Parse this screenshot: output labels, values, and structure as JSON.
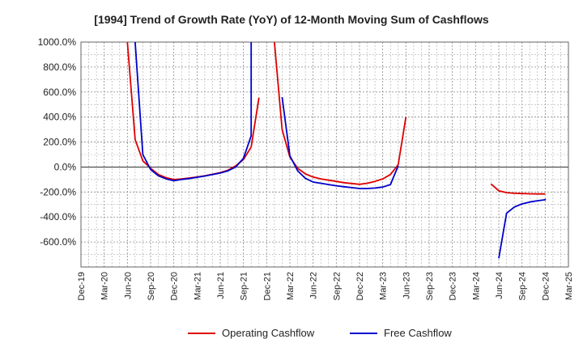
{
  "title": "[1994]  Trend of Growth Rate (YoY) of 12-Month Moving Sum of Cashflows",
  "legend": [
    {
      "label": "Operating Cashflow",
      "color": "#dd0000"
    },
    {
      "label": "Free Cashflow",
      "color": "#0000cc"
    }
  ],
  "chart_data": {
    "type": "line",
    "title": "[1994]  Trend of Growth Rate (YoY) of 12-Month Moving Sum of Cashflows",
    "xlabel": "",
    "ylabel": "",
    "x_ticks": [
      "Dec-19",
      "Mar-20",
      "Jun-20",
      "Sep-20",
      "Dec-20",
      "Mar-21",
      "Jun-21",
      "Sep-21",
      "Dec-21",
      "Mar-22",
      "Jun-22",
      "Sep-22",
      "Dec-22",
      "Mar-23",
      "Jun-23",
      "Sep-23",
      "Dec-23",
      "Mar-24",
      "Jun-24",
      "Sep-24",
      "Dec-24",
      "Mar-25"
    ],
    "y_ticks": [
      "1000.0%",
      "800.0%",
      "600.0%",
      "400.0%",
      "200.0%",
      "0.0%",
      "-200.0%",
      "-400.0%",
      "-600.0%"
    ],
    "y_tick_values": [
      1000,
      800,
      600,
      400,
      200,
      0,
      -200,
      -400,
      -600
    ],
    "ylim": [
      -800,
      1000
    ],
    "grid": true,
    "legend_position": "bottom",
    "series": [
      {
        "name": "Operating Cashflow",
        "color": "#dd0000",
        "points": [
          [
            "Jun-20",
            1000
          ],
          [
            "Jul-20",
            220
          ],
          [
            "Aug-20",
            50
          ],
          [
            "Sep-20",
            -10
          ],
          [
            "Oct-20",
            -60
          ],
          [
            "Nov-20",
            -85
          ],
          [
            "Dec-20",
            -100
          ],
          [
            "Jan-21",
            -95
          ],
          [
            "Feb-21",
            -88
          ],
          [
            "Mar-21",
            -80
          ],
          [
            "Apr-21",
            -70
          ],
          [
            "May-21",
            -58
          ],
          [
            "Jun-21",
            -45
          ],
          [
            "Jul-21",
            -25
          ],
          [
            "Aug-21",
            10
          ],
          [
            "Sep-21",
            60
          ],
          [
            "Oct-21",
            160
          ],
          [
            "Nov-21",
            555
          ],
          null,
          [
            "Jan-22",
            1000
          ],
          [
            "Feb-22",
            300
          ],
          [
            "Mar-22",
            80
          ],
          [
            "Apr-22",
            -10
          ],
          [
            "May-22",
            -55
          ],
          [
            "Jun-22",
            -80
          ],
          [
            "Jul-22",
            -95
          ],
          [
            "Aug-22",
            -105
          ],
          [
            "Sep-22",
            -115
          ],
          [
            "Oct-22",
            -125
          ],
          [
            "Nov-22",
            -132
          ],
          [
            "Dec-22",
            -138
          ],
          [
            "Jan-23",
            -130
          ],
          [
            "Feb-23",
            -115
          ],
          [
            "Mar-23",
            -95
          ],
          [
            "Apr-23",
            -60
          ],
          [
            "May-23",
            20
          ],
          [
            "Jun-23",
            400
          ],
          null,
          [
            "May-24",
            -135
          ],
          [
            "Jun-24",
            -190
          ],
          [
            "Jul-24",
            -205
          ],
          [
            "Aug-24",
            -210
          ],
          [
            "Sep-24",
            -212
          ],
          [
            "Oct-24",
            -214
          ],
          [
            "Nov-24",
            -215
          ],
          [
            "Dec-24",
            -215
          ]
        ]
      },
      {
        "name": "Free Cashflow",
        "color": "#0000cc",
        "points": [
          [
            "Jul-20",
            1000
          ],
          [
            "Aug-20",
            100
          ],
          [
            "Sep-20",
            -20
          ],
          [
            "Oct-20",
            -70
          ],
          [
            "Nov-20",
            -95
          ],
          [
            "Dec-20",
            -110
          ],
          [
            "Jan-21",
            -100
          ],
          [
            "Feb-21",
            -92
          ],
          [
            "Mar-21",
            -82
          ],
          [
            "Apr-21",
            -72
          ],
          [
            "May-21",
            -60
          ],
          [
            "Jun-21",
            -48
          ],
          [
            "Jul-21",
            -30
          ],
          [
            "Aug-21",
            0
          ],
          [
            "Sep-21",
            70
          ],
          [
            "Oct-21",
            250
          ],
          [
            "Oct-21",
            1000
          ],
          null,
          [
            "Feb-22",
            560
          ],
          [
            "Mar-22",
            90
          ],
          [
            "Apr-22",
            -30
          ],
          [
            "May-22",
            -90
          ],
          [
            "Jun-22",
            -120
          ],
          [
            "Jul-22",
            -130
          ],
          [
            "Aug-22",
            -140
          ],
          [
            "Sep-22",
            -150
          ],
          [
            "Oct-22",
            -158
          ],
          [
            "Nov-22",
            -165
          ],
          [
            "Dec-22",
            -172
          ],
          [
            "Jan-23",
            -172
          ],
          [
            "Feb-23",
            -168
          ],
          [
            "Mar-23",
            -160
          ],
          [
            "Apr-23",
            -140
          ],
          [
            "May-23",
            10
          ],
          null,
          [
            "Jun-24",
            -730
          ],
          [
            "Jul-24",
            -370
          ],
          [
            "Aug-24",
            -320
          ],
          [
            "Sep-24",
            -295
          ],
          [
            "Oct-24",
            -280
          ],
          [
            "Nov-24",
            -270
          ],
          [
            "Dec-24",
            -262
          ],
          [
            "Dec-24",
            -255
          ]
        ]
      }
    ]
  }
}
